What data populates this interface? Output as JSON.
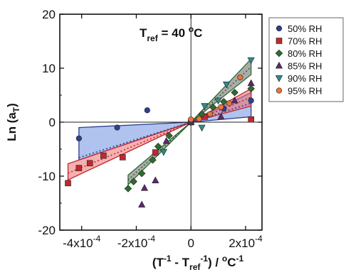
{
  "chart_data": {
    "type": "scatter",
    "annotation": {
      "base": "T",
      "sub": "ref",
      "rest": " = 40 ",
      "sup": "o",
      "tail": "C"
    },
    "xlabel": {
      "p1": "(T",
      "sup1": "-1",
      "p2": " - T",
      "sub": "ref",
      "sup2": "-1",
      "p3": ") / ",
      "sup3": "o",
      "p4": "C",
      "sup4": "-1"
    },
    "ylabel": {
      "main": "Ln (a",
      "sub": "T",
      "close": ")"
    },
    "xlim": [
      -0.00048,
      0.00026
    ],
    "ylim": [
      -20,
      20
    ],
    "yticks": [
      -20,
      -10,
      0,
      10,
      20
    ],
    "xticks": [
      {
        "value": -0.0004,
        "mant": "-4x10",
        "exp": "-4"
      },
      {
        "value": -0.0002,
        "mant": "-2x10",
        "exp": "-4"
      },
      {
        "value": 0,
        "mant": "0",
        "exp": ""
      },
      {
        "value": 0.0002,
        "mant": "2x10",
        "exp": "-4"
      }
    ],
    "legend_position": "outside-right",
    "series": [
      {
        "name": "50% RH",
        "marker": "circle",
        "color": "#2d3f8e",
        "points": [
          [
            -0.00041,
            -3.0
          ],
          [
            -0.00027,
            -1.0
          ],
          [
            -0.00016,
            2.2
          ],
          [
            0.0,
            0.0
          ],
          [
            0.00012,
            2.5
          ],
          [
            0.00022,
            4.0
          ]
        ],
        "fit": {
          "slope": 16000,
          "x_range": [
            -0.00041,
            0.00022
          ]
        },
        "band": {
          "color": "#6f8fe0",
          "upper": [
            [
              -0.00041,
              -1.0
            ],
            [
              0.00022,
              5.5
            ]
          ],
          "lower": [
            [
              -0.00041,
              -7.0
            ],
            [
              0.00022,
              1.0
            ]
          ]
        }
      },
      {
        "name": "70% RH",
        "marker": "square",
        "color": "#c0282e",
        "points": [
          [
            -0.00045,
            -11.3
          ],
          [
            -0.00041,
            -8.5
          ],
          [
            -0.00037,
            -7.6
          ],
          [
            -0.00032,
            -6.2
          ],
          [
            -0.00025,
            -6.5
          ],
          [
            -0.00013,
            -5.6
          ],
          [
            0.0,
            0.0
          ],
          [
            5e-05,
            1.0
          ],
          [
            0.00022,
            0.5
          ]
        ],
        "fit": {
          "slope": 21000,
          "x_range": [
            -0.00045,
            0.00022
          ]
        },
        "band": {
          "color": "#f07070",
          "upper": [
            [
              -0.00045,
              -7.7
            ],
            [
              0.00022,
              6.2
            ]
          ],
          "lower": [
            [
              -0.00045,
              -10.7
            ],
            [
              0.00022,
              3.0
            ]
          ]
        }
      },
      {
        "name": "80% RH",
        "marker": "diamond",
        "color": "#2f6b2f",
        "points": [
          [
            -0.00023,
            -12.3
          ],
          [
            -0.00021,
            -11.0
          ],
          [
            -0.00018,
            -9.5
          ],
          [
            -0.00014,
            -7.0
          ],
          [
            -0.00012,
            -4.5
          ],
          [
            -8e-05,
            -2.5
          ],
          [
            0.0,
            0.0
          ],
          [
            4e-05,
            1.5
          ],
          [
            8e-05,
            2.8
          ],
          [
            0.00012,
            3.8
          ],
          [
            0.00016,
            5.5
          ],
          [
            0.00022,
            6.2
          ]
        ],
        "fit": {
          "slope": 46500,
          "x_range": [
            -0.00023,
            0.00022
          ]
        },
        "band": {
          "color": "#666666",
          "upper": [
            [
              -0.00023,
              -9.8
            ],
            [
              0.00022,
              11.7
            ]
          ],
          "lower": [
            [
              -0.00023,
              -11.6
            ],
            [
              0.00022,
              8.8
            ]
          ]
        }
      },
      {
        "name": "85% RH",
        "marker": "triangle-up",
        "color": "#5a2a6b",
        "points": [
          [
            -0.00018,
            -15.3
          ],
          [
            -0.00017,
            -12.2
          ],
          [
            -0.00013,
            -10.8
          ],
          [
            -9e-05,
            -3.5
          ],
          [
            0.0,
            0.0
          ],
          [
            0.00011,
            1.0
          ],
          [
            0.00016,
            4.0
          ],
          [
            0.00022,
            7.2
          ]
        ],
        "fit": null,
        "band": null
      },
      {
        "name": "90% RH",
        "marker": "triangle-down",
        "color": "#2e8b8b",
        "points": [
          [
            -0.0001,
            -5.5
          ],
          [
            4e-05,
            -1.0
          ],
          [
            5e-05,
            3.0
          ],
          [
            0.0001,
            4.0
          ],
          [
            0.00013,
            7.0
          ],
          [
            0.00022,
            11.5
          ]
        ],
        "fit": null,
        "band": null
      },
      {
        "name": "95% RH",
        "marker": "circle",
        "color": "#e8743b",
        "points": [
          [
            0.0,
            0.5
          ],
          [
            3e-05,
            0.6
          ],
          [
            7e-05,
            1.5
          ],
          [
            0.00011,
            2.8
          ],
          [
            0.00014,
            3.5
          ],
          [
            0.00018,
            8.3
          ]
        ],
        "fit": null,
        "band": null
      }
    ]
  }
}
